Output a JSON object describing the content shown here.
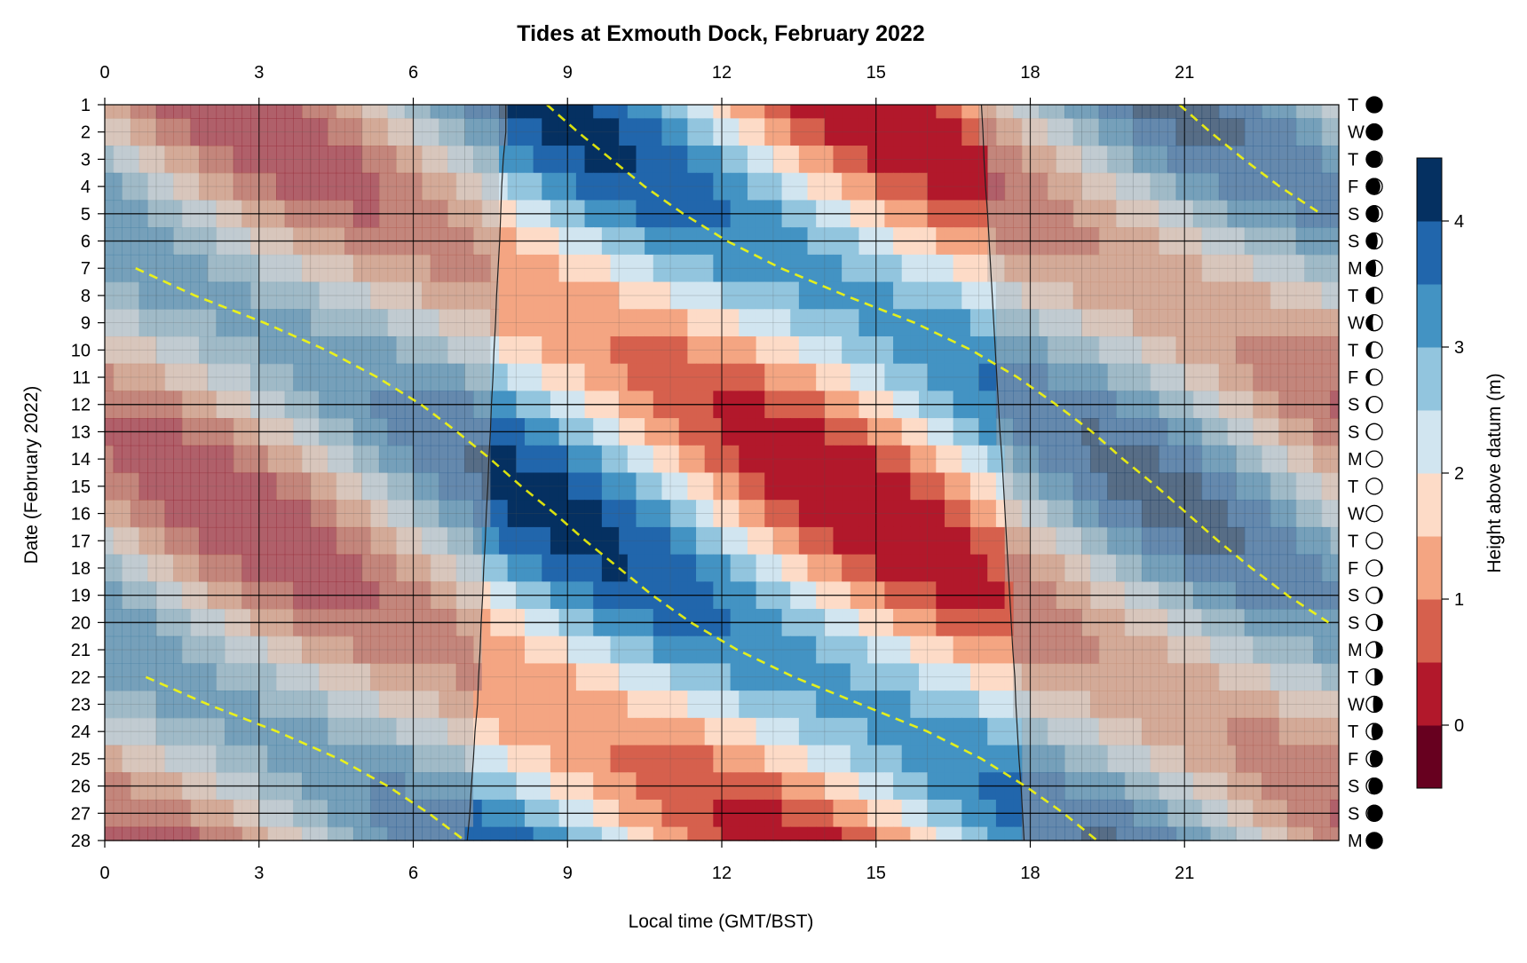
{
  "chart_data": {
    "type": "heatmap",
    "title": "Tides at Exmouth Dock, February 2022",
    "xlabel": "Local time (GMT/BST)",
    "ylabel": "Date (February 2022)",
    "colorbar_label": "Height above datum (m)",
    "x_ticks": [
      "0",
      "3",
      "6",
      "9",
      "12",
      "15",
      "18",
      "21"
    ],
    "x_tick_values": [
      0,
      3,
      6,
      9,
      12,
      15,
      18,
      21
    ],
    "xlim": [
      0,
      24
    ],
    "y_days": [
      1,
      2,
      3,
      4,
      5,
      6,
      7,
      8,
      9,
      10,
      11,
      12,
      13,
      14,
      15,
      16,
      17,
      18,
      19,
      20,
      21,
      22,
      23,
      24,
      25,
      26,
      27,
      28
    ],
    "y_tick_labels": [
      "1",
      "2",
      "3",
      "4",
      "5",
      "6",
      "7",
      "8",
      "9",
      "10",
      "11",
      "12",
      "13",
      "14",
      "15",
      "16",
      "17",
      "18",
      "19",
      "20",
      "21",
      "22",
      "23",
      "24",
      "25",
      "26",
      "27",
      "28"
    ],
    "weekdays": [
      "T",
      "W",
      "T",
      "F",
      "S",
      "S",
      "M",
      "T",
      "W",
      "T",
      "F",
      "S",
      "S",
      "M",
      "T",
      "W",
      "T",
      "F",
      "S",
      "S",
      "M",
      "T",
      "W",
      "T",
      "F",
      "S",
      "S",
      "M"
    ],
    "moon_illuminated_fraction": [
      0.0,
      0.02,
      0.06,
      0.12,
      0.2,
      0.29,
      0.39,
      0.5,
      0.6,
      0.7,
      0.79,
      0.87,
      0.93,
      0.98,
      1.0,
      0.99,
      0.96,
      0.9,
      0.82,
      0.73,
      0.63,
      0.52,
      0.42,
      0.32,
      0.22,
      0.13,
      0.06,
      0.02
    ],
    "moon_waxing": [
      true,
      true,
      true,
      true,
      true,
      true,
      true,
      true,
      true,
      true,
      true,
      true,
      true,
      true,
      true,
      false,
      false,
      false,
      false,
      false,
      false,
      false,
      false,
      false,
      false,
      false,
      false,
      false
    ],
    "colorbar_ticks": [
      "0",
      "1",
      "2",
      "3",
      "4"
    ],
    "colorbar_tick_values": [
      0,
      1,
      2,
      3,
      4
    ],
    "levels": [
      -0.5,
      0,
      0.5,
      1,
      1.5,
      2,
      2.5,
      3,
      3.5,
      4,
      4.5
    ],
    "colors": [
      "#67001f",
      "#b2182b",
      "#d6604d",
      "#f4a582",
      "#fddbc7",
      "#d1e5f0",
      "#92c5de",
      "#4393c3",
      "#2166ac",
      "#053061"
    ],
    "daylight": {
      "sunrise_h": [
        7.8,
        7.8,
        7.75,
        7.72,
        7.7,
        7.68,
        7.65,
        7.62,
        7.6,
        7.57,
        7.55,
        7.52,
        7.5,
        7.47,
        7.45,
        7.42,
        7.4,
        7.37,
        7.35,
        7.32,
        7.3,
        7.27,
        7.25,
        7.2,
        7.17,
        7.13,
        7.1,
        7.05
      ],
      "sunset_h": [
        17.05,
        17.08,
        17.1,
        17.13,
        17.17,
        17.2,
        17.23,
        17.26,
        17.29,
        17.32,
        17.35,
        17.38,
        17.41,
        17.45,
        17.48,
        17.51,
        17.54,
        17.57,
        17.6,
        17.63,
        17.66,
        17.7,
        17.72,
        17.75,
        17.78,
        17.82,
        17.85,
        17.88
      ]
    },
    "dashed_line_color": "#ffff00",
    "model": {
      "mean": 2.1,
      "m2_amp": 1.55,
      "s2_amp": 0.55,
      "m2_period_h": 12.42,
      "s2_period_h": 12.0,
      "high_water_feb1_h": 8.6
    }
  }
}
